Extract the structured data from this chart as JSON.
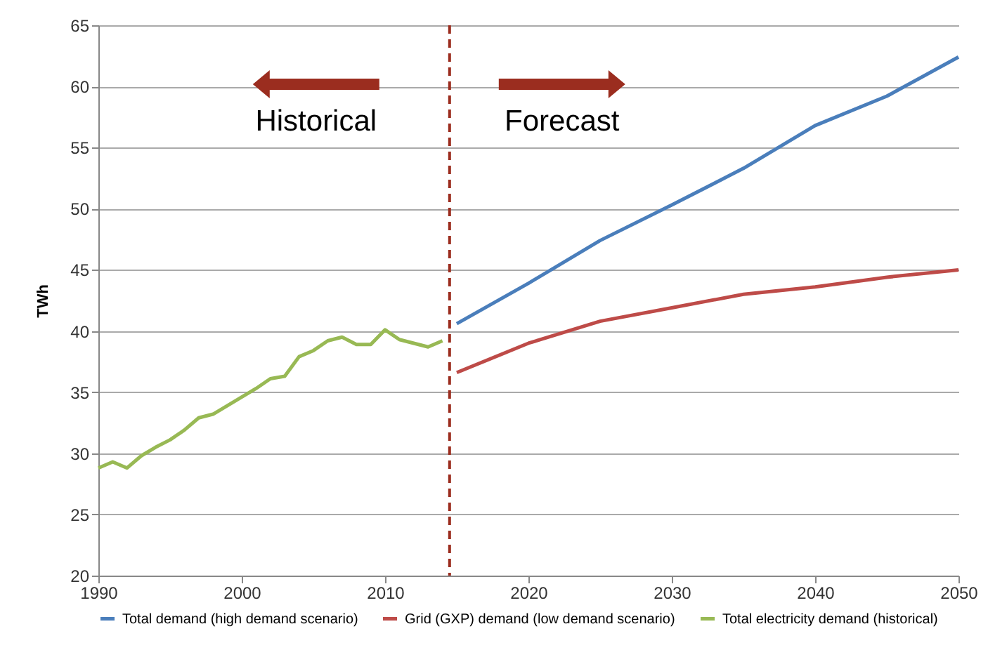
{
  "chart_data": {
    "type": "line",
    "ylabel": "TWh",
    "xlim": [
      1990,
      2050
    ],
    "xticks": [
      1990,
      2000,
      2010,
      2020,
      2030,
      2040,
      2050
    ],
    "ylim": [
      20,
      65
    ],
    "yticks": [
      20,
      25,
      30,
      35,
      40,
      45,
      50,
      55,
      60,
      65
    ],
    "grid": "y",
    "legend": "bottom",
    "line_style": "solid",
    "marker": "none",
    "series": [
      {
        "name": "Total demand (high demand scenario)",
        "color": "#4a7ebb",
        "x": [
          2015,
          2020,
          2025,
          2030,
          2035,
          2040,
          2045,
          2050
        ],
        "values": [
          40.6,
          43.9,
          47.4,
          50.3,
          53.3,
          56.8,
          59.2,
          62.4
        ]
      },
      {
        "name": "Grid (GXP) demand (low demand scenario)",
        "color": "#be4b48",
        "x": [
          2015,
          2020,
          2025,
          2030,
          2035,
          2040,
          2045,
          2050
        ],
        "values": [
          36.6,
          39.0,
          40.8,
          41.9,
          43.0,
          43.6,
          44.4,
          45.0
        ]
      },
      {
        "name": "Total electricity demand (historical)",
        "color": "#98b954",
        "x": [
          1990,
          1991,
          1992,
          1993,
          1994,
          1995,
          1996,
          1997,
          1998,
          1999,
          2000,
          2001,
          2002,
          2003,
          2004,
          2005,
          2006,
          2007,
          2008,
          2009,
          2010,
          2011,
          2012,
          2013,
          2014
        ],
        "values": [
          28.8,
          29.3,
          28.8,
          29.8,
          30.5,
          31.1,
          31.9,
          32.9,
          33.2,
          33.9,
          34.6,
          35.3,
          36.1,
          36.3,
          37.9,
          38.4,
          39.2,
          39.5,
          38.9,
          38.9,
          40.1,
          39.3,
          39.0,
          38.7,
          39.2
        ]
      }
    ],
    "ref_lines": [
      {
        "axis": "x",
        "value": 2014.5,
        "color": "#9b2d1f",
        "line_style": "dashed"
      }
    ],
    "annotations": [
      "Historical",
      "Forecast"
    ]
  }
}
